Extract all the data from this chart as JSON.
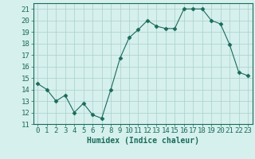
{
  "x": [
    0,
    1,
    2,
    3,
    4,
    5,
    6,
    7,
    8,
    9,
    10,
    11,
    12,
    13,
    14,
    15,
    16,
    17,
    18,
    19,
    20,
    21,
    22,
    23
  ],
  "y": [
    14.5,
    14.0,
    13.0,
    13.5,
    12.0,
    12.8,
    11.8,
    11.5,
    14.0,
    16.7,
    18.5,
    19.2,
    20.0,
    19.5,
    19.3,
    19.3,
    21.0,
    21.0,
    21.0,
    20.0,
    19.7,
    17.9,
    15.5,
    15.2
  ],
  "line_color": "#1a6b5a",
  "marker": "D",
  "marker_size": 2.5,
  "bg_color": "#d6f0ee",
  "grid_color": "#a8d0cc",
  "xlabel": "Humidex (Indice chaleur)",
  "xlabel_fontsize": 7,
  "tick_fontsize": 6.5,
  "ylim": [
    11,
    21.5
  ],
  "yticks": [
    11,
    12,
    13,
    14,
    15,
    16,
    17,
    18,
    19,
    20,
    21
  ],
  "xlim": [
    -0.5,
    23.5
  ],
  "xticks": [
    0,
    1,
    2,
    3,
    4,
    5,
    6,
    7,
    8,
    9,
    10,
    11,
    12,
    13,
    14,
    15,
    16,
    17,
    18,
    19,
    20,
    21,
    22,
    23
  ]
}
